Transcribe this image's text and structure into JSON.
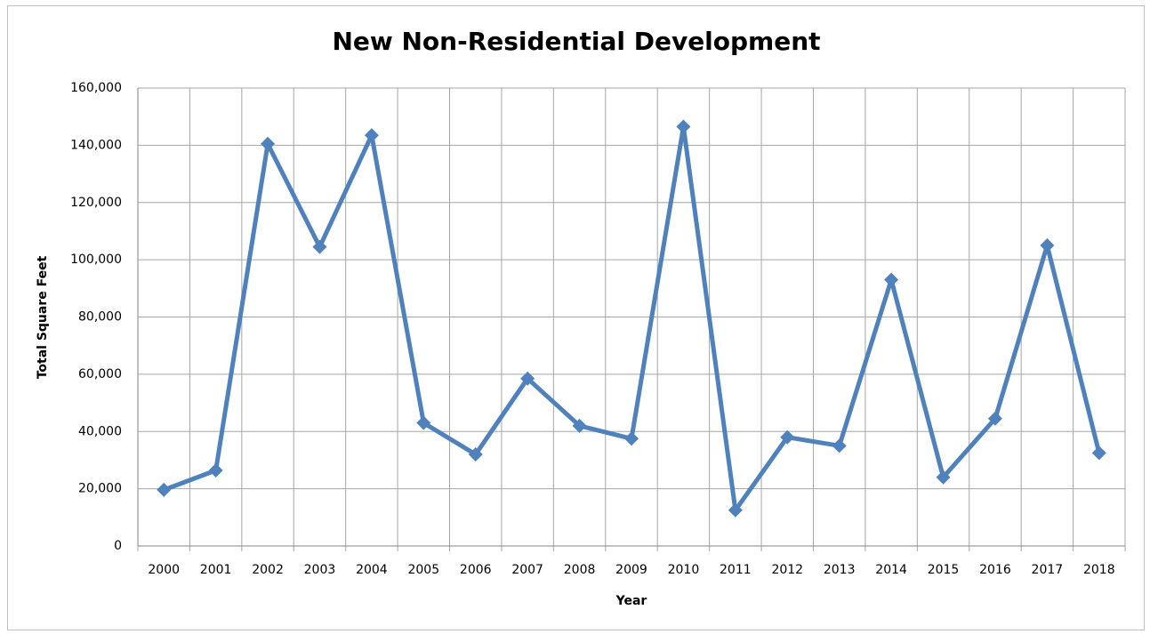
{
  "chart_data": {
    "type": "line",
    "title": "New Non-Residential Development",
    "x_label": "Year",
    "y_label": "Total Square Feet",
    "categories": [
      "2000",
      "2001",
      "2002",
      "2003",
      "2004",
      "2005",
      "2006",
      "2007",
      "2008",
      "2009",
      "2010",
      "2011",
      "2012",
      "2013",
      "2014",
      "2015",
      "2016",
      "2017",
      "2018"
    ],
    "values": [
      19600,
      26400,
      140500,
      104500,
      143500,
      43000,
      32000,
      58500,
      42000,
      37500,
      146500,
      12500,
      38000,
      35000,
      93000,
      24000,
      44500,
      105000,
      32500
    ],
    "color": "#4f81bd",
    "marker": "diamond",
    "ylim": [
      0,
      160000
    ],
    "yticks": [
      0,
      {
        "value": 20000,
        "label": "20,000"
      },
      {
        "value": 40000,
        "label": "40,000"
      },
      {
        "value": 60000,
        "label": "60,000"
      },
      {
        "value": 80000,
        "label": "80,000"
      },
      {
        "value": 100000,
        "label": "100,000"
      },
      {
        "value": 120000,
        "label": "120,000"
      },
      {
        "value": 140000,
        "label": "140,000"
      },
      {
        "value": 160000,
        "label": "160,000"
      }
    ],
    "grid": true
  }
}
